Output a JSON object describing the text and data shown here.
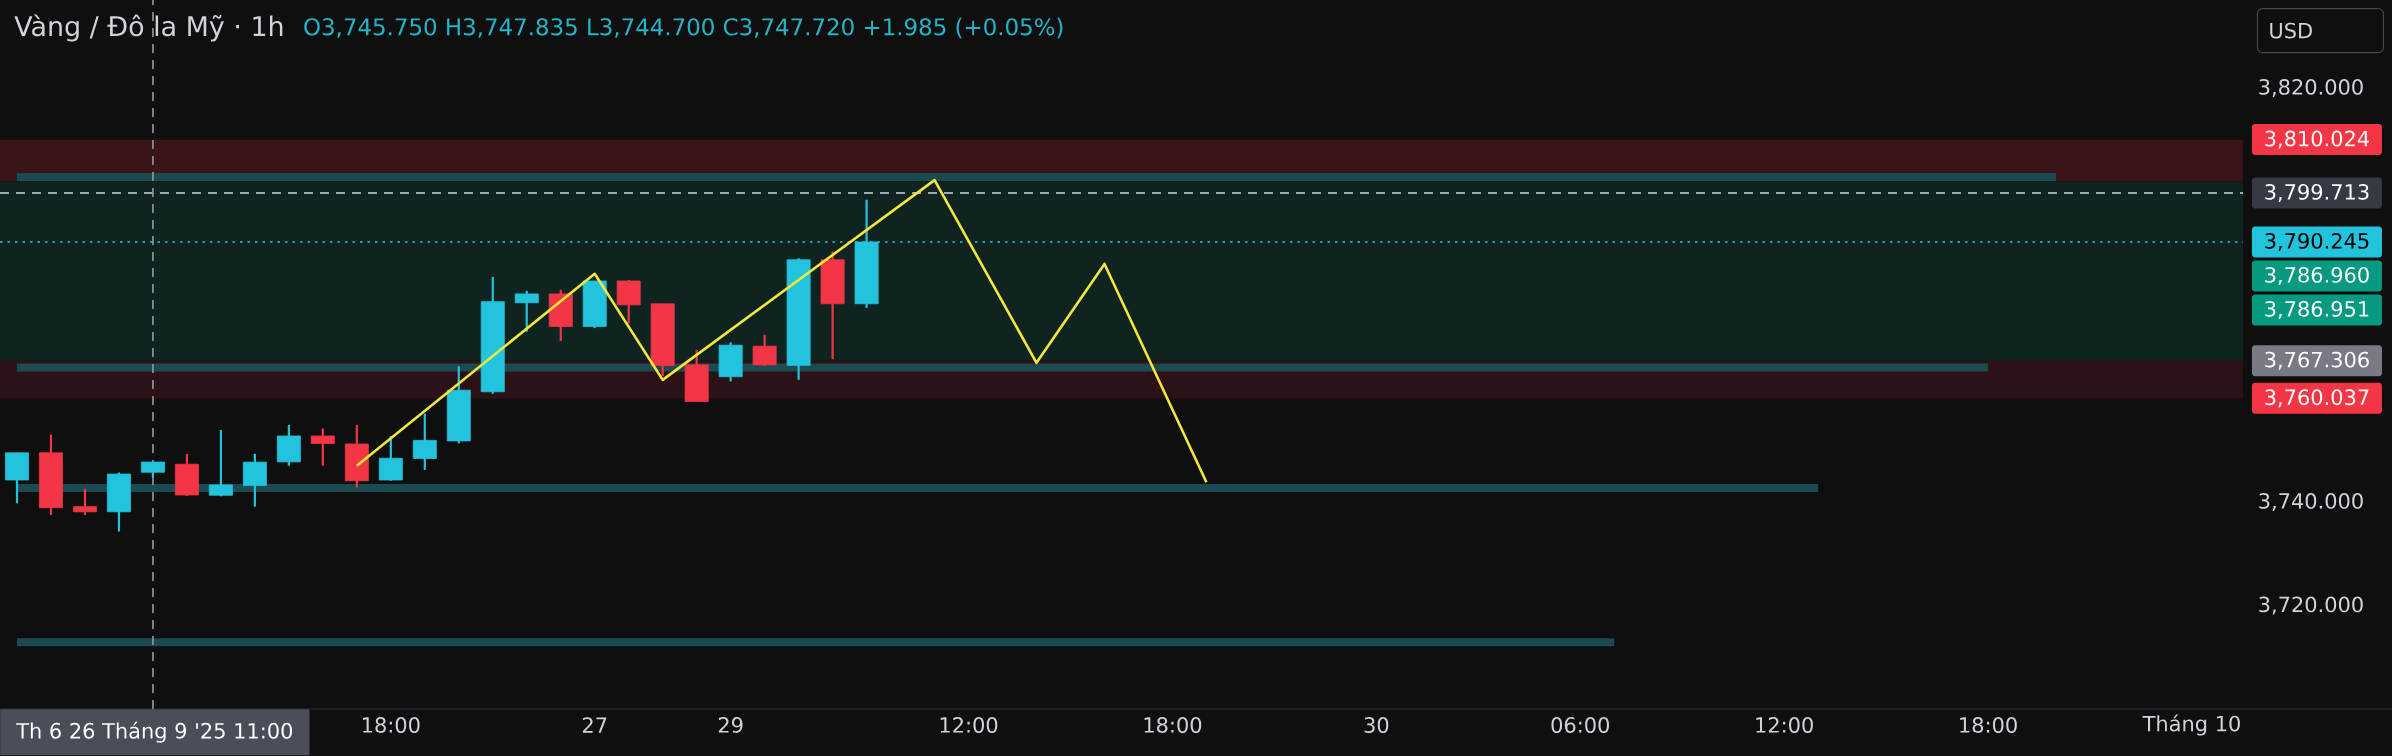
{
  "chart_data": {
    "type": "candlestick",
    "title": "Vàng / Đô la Mỹ · 1h",
    "subtitle": "O3,745.750 H3,747.835 L3,744.700 C3,747.720 +1.985 (+0.05%)",
    "categories": [
      null,
      null,
      null,
      null,
      "Th 6 26 Tháng 9 '25 11:00",
      null,
      null,
      null,
      null,
      null,
      null,
      "18:00",
      null,
      null,
      null,
      null,
      null,
      "27",
      null,
      null,
      null,
      "29",
      null,
      null,
      null,
      null,
      null,
      null,
      "12:00",
      null,
      null,
      null,
      null,
      null,
      "18:00",
      null,
      null,
      null,
      null,
      null,
      "30",
      null,
      null,
      null,
      null,
      null,
      "06:00",
      null,
      null,
      null,
      null,
      null,
      "12:00",
      null,
      null,
      null,
      null,
      null,
      "18:00",
      null,
      null,
      null,
      null,
      null,
      "Tháng 10",
      null
    ],
    "ohlc": [
      [
        3744.25,
        3749.5,
        3739.75,
        3749.5
      ],
      [
        3749.5,
        3753.0,
        3737.5,
        3738.9
      ],
      [
        3739.1,
        3742.6,
        3737.5,
        3738.1
      ],
      [
        3738.1,
        3745.7,
        3734.3,
        3745.4
      ],
      [
        3745.75,
        3747.835,
        3744.7,
        3747.72
      ],
      [
        3747.3,
        3749.3,
        3741.2,
        3741.35
      ],
      [
        3741.3,
        3753.9,
        3741.1,
        3743.3
      ],
      [
        3743.2,
        3749.3,
        3739.1,
        3747.7
      ],
      [
        3747.75,
        3754.9,
        3747.0,
        3752.75
      ],
      [
        3752.75,
        3754.2,
        3747.0,
        3751.3
      ],
      [
        3751.2,
        3754.9,
        3742.8,
        3744.1
      ],
      [
        3744.25,
        3752.75,
        3744.1,
        3748.45
      ],
      [
        3748.4,
        3757.1,
        3746.2,
        3751.9
      ],
      [
        3751.8,
        3766.2,
        3751.3,
        3761.6
      ],
      [
        3761.3,
        3783.5,
        3760.9,
        3778.7
      ],
      [
        3778.5,
        3780.8,
        3772.9,
        3780.2
      ],
      [
        3780.2,
        3781.0,
        3771.1,
        3773.9
      ],
      [
        3773.9,
        3782.7,
        3773.6,
        3782.7
      ],
      [
        3782.7,
        3782.9,
        3774.5,
        3778.1
      ],
      [
        3778.3,
        3778.3,
        3764.35,
        3766.35
      ],
      [
        3766.5,
        3769.4,
        3759.4,
        3759.4
      ],
      [
        3764.2,
        3770.85,
        3763.3,
        3770.3
      ],
      [
        3770.1,
        3772.3,
        3766.3,
        3766.5
      ],
      [
        3766.4,
        3787.1,
        3763.6,
        3786.8
      ],
      [
        3786.8,
        3788.4,
        3767.6,
        3778.3
      ],
      [
        3778.3,
        3798.4,
        3777.5,
        3790.245
      ],
      null,
      null,
      null,
      null,
      null,
      null,
      null,
      null,
      null,
      null,
      null,
      null,
      null,
      null,
      null,
      null,
      null,
      null,
      null,
      null,
      null,
      null,
      null,
      null,
      null,
      null,
      null,
      null,
      null,
      null,
      null,
      null,
      null,
      null,
      null,
      null,
      null,
      null,
      null,
      null
    ],
    "colors": [
      "#22c3dc",
      "#f23645",
      "#f23645",
      "#22c3dc",
      "#22c3dc",
      "#f23645",
      "#22c3dc",
      "#22c3dc",
      "#22c3dc",
      "#f23645",
      "#f23645",
      "#22c3dc",
      "#22c3dc",
      "#22c3dc",
      "#22c3dc",
      "#22c3dc",
      "#f23645",
      "#22c3dc",
      "#f23645",
      "#f23645",
      "#f23645",
      "#22c3dc",
      "#f23645",
      "#22c3dc",
      "#f23645",
      "#22c3dc",
      null,
      null,
      null,
      null,
      null,
      null,
      null,
      null,
      null,
      null,
      null,
      null,
      null,
      null,
      null,
      null,
      null,
      null,
      null,
      null,
      null,
      null,
      null,
      null,
      null,
      null,
      null,
      null,
      null,
      null,
      null,
      null,
      null,
      null,
      null,
      null,
      null,
      null,
      null,
      null
    ],
    "series": [
      {
        "type": "line",
        "color": "#1b4a50",
        "values": [
          3802.8,
          null,
          null,
          null,
          null,
          null,
          null,
          null,
          null,
          null,
          null,
          null,
          null,
          null,
          null,
          null,
          null,
          null,
          null,
          null,
          null,
          null,
          null,
          null,
          null,
          null,
          null,
          null,
          null,
          null,
          null,
          null,
          null,
          null,
          null,
          null,
          null,
          null,
          null,
          null,
          null,
          null,
          null,
          null,
          null,
          null,
          null,
          null,
          null,
          null,
          null,
          null,
          null,
          null,
          null,
          null,
          null,
          null,
          null,
          null,
          3802.8,
          null,
          null,
          null,
          null,
          null
        ]
      },
      {
        "type": "line",
        "color": "#1b4a50",
        "values": [
          3766.0,
          null,
          null,
          null,
          null,
          null,
          null,
          null,
          null,
          null,
          null,
          null,
          null,
          null,
          null,
          null,
          null,
          null,
          null,
          null,
          null,
          null,
          null,
          null,
          null,
          null,
          null,
          null,
          null,
          null,
          null,
          null,
          null,
          null,
          null,
          null,
          null,
          null,
          null,
          null,
          null,
          null,
          null,
          null,
          null,
          null,
          null,
          null,
          null,
          null,
          null,
          null,
          null,
          null,
          null,
          null,
          null,
          null,
          3766.0,
          null,
          null,
          null,
          null,
          null,
          null,
          null
        ]
      },
      {
        "type": "line",
        "color": "#1b4a50",
        "values": [
          3742.7,
          null,
          null,
          null,
          null,
          null,
          null,
          null,
          null,
          null,
          null,
          null,
          null,
          null,
          null,
          null,
          null,
          null,
          null,
          null,
          null,
          null,
          null,
          null,
          null,
          null,
          null,
          null,
          null,
          null,
          null,
          null,
          null,
          null,
          null,
          null,
          null,
          null,
          null,
          null,
          null,
          null,
          null,
          null,
          null,
          null,
          null,
          null,
          null,
          null,
          null,
          null,
          null,
          3742.7,
          null,
          null,
          null,
          null,
          null,
          null,
          null,
          null,
          null,
          null,
          null,
          null
        ]
      },
      {
        "type": "line",
        "color": "#1b4a50",
        "values": [
          3712.9,
          null,
          null,
          null,
          null,
          null,
          null,
          null,
          null,
          null,
          null,
          null,
          null,
          null,
          null,
          null,
          null,
          null,
          null,
          null,
          null,
          null,
          null,
          null,
          null,
          null,
          null,
          null,
          null,
          null,
          null,
          null,
          null,
          null,
          null,
          null,
          null,
          null,
          null,
          null,
          null,
          null,
          null,
          null,
          null,
          null,
          null,
          3712.9,
          null,
          null,
          null,
          null,
          null,
          null,
          null,
          null,
          null,
          null,
          null,
          null,
          null,
          null,
          null,
          null,
          null,
          null
        ]
      },
      {
        "type": "line",
        "color": "#f5e63b",
        "values": [
          null,
          null,
          null,
          null,
          null,
          null,
          null,
          null,
          null,
          null,
          3747.0,
          null,
          null,
          null,
          null,
          null,
          null,
          3784.1,
          null,
          3763.6,
          null,
          null,
          null,
          null,
          null,
          null,
          null,
          3802.2,
          null,
          null,
          3766.9,
          null,
          3786.0,
          null,
          null,
          3743.8,
          null,
          null,
          null,
          null,
          null,
          null,
          null,
          null,
          null,
          null,
          null,
          null,
          null,
          null,
          null,
          null,
          null,
          null,
          null,
          null,
          null,
          null,
          null,
          null,
          null,
          null,
          null,
          null,
          null,
          null
        ]
      }
    ],
    "ylim": [
      3700,
      3837
    ],
    "bands": [
      {
        "axis": "y",
        "from": 3802.0,
        "to": 3810.0,
        "color": "#3a1418"
      },
      {
        "axis": "y",
        "from": 3767.3,
        "to": 3802.0,
        "color": "#0f2420"
      },
      {
        "axis": "y",
        "from": 3760.0,
        "to": 3767.3,
        "color": "#2c1216"
      }
    ],
    "yticks": [
      {
        "value": 3720,
        "label": "3,720.000"
      },
      {
        "value": 3740,
        "label": "3,740.000"
      },
      {
        "value": 3820,
        "label": "3,820.000"
      }
    ],
    "ref_lines": [
      {
        "axis": "y",
        "value": 3799.713,
        "label": "3,799.713",
        "color": "#d1d4dc",
        "line_style": "dashed"
      },
      {
        "axis": "y",
        "value": 3790.245,
        "label": "3,790.245",
        "color": "#22c3dc",
        "line_style": "dotted"
      },
      {
        "axis": "x",
        "value": "Th 6 26 Tháng 9 '25 11:00",
        "color": "#9598a1",
        "line_style": "dashed"
      }
    ],
    "annotations": [
      "3,810.024",
      "3,786.960",
      "3,786.951",
      "3,767.306",
      "3,760.037",
      "USD"
    ]
  }
}
